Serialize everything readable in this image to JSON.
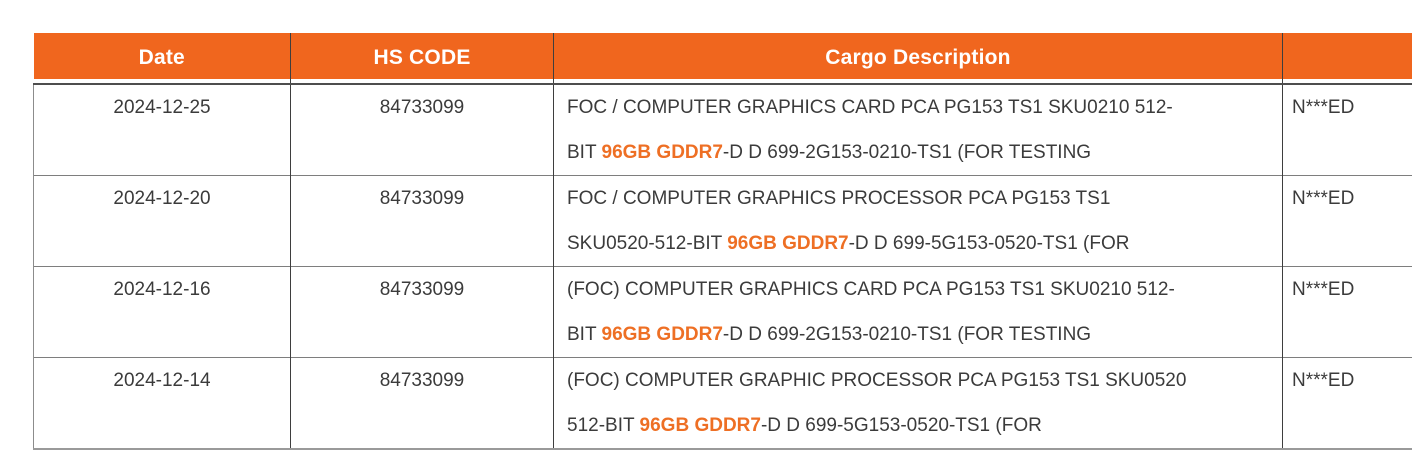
{
  "colors": {
    "header_bg": "#F0661E",
    "header_text": "#FFFFFF",
    "highlight_text": "#EE6F24",
    "body_text": "#3B3B3B"
  },
  "table": {
    "columns": [
      {
        "key": "date",
        "label": "Date"
      },
      {
        "key": "hs_code",
        "label": "HS CODE"
      },
      {
        "key": "description",
        "label": "Cargo Description"
      },
      {
        "key": "consignee",
        "label": ""
      }
    ],
    "rows": [
      {
        "date": "2024-12-25",
        "hs_code": "84733099",
        "description_lines": [
          [
            {
              "text": "FOC / COMPUTER GRAPHICS CARD PCA PG153 TS1 SKU0210 512-",
              "hl": false
            }
          ],
          [
            {
              "text": "BIT ",
              "hl": false
            },
            {
              "text": "96GB GDDR7",
              "hl": true
            },
            {
              "text": "-D D 699-2G153-0210-TS1 (FOR TESTING",
              "hl": false
            }
          ]
        ],
        "consignee": "N***ED"
      },
      {
        "date": "2024-12-20",
        "hs_code": "84733099",
        "description_lines": [
          [
            {
              "text": "FOC / COMPUTER GRAPHICS PROCESSOR PCA PG153 TS1",
              "hl": false
            }
          ],
          [
            {
              "text": "SKU0520-512-BIT ",
              "hl": false
            },
            {
              "text": "96GB GDDR7",
              "hl": true
            },
            {
              "text": "-D D 699-5G153-0520-TS1 (FOR",
              "hl": false
            }
          ]
        ],
        "consignee": "N***ED"
      },
      {
        "date": "2024-12-16",
        "hs_code": "84733099",
        "description_lines": [
          [
            {
              "text": "(FOC) COMPUTER GRAPHICS CARD PCA PG153 TS1 SKU0210 512-",
              "hl": false
            }
          ],
          [
            {
              "text": "BIT ",
              "hl": false
            },
            {
              "text": "96GB GDDR7",
              "hl": true
            },
            {
              "text": "-D D 699-2G153-0210-TS1 (FOR TESTING",
              "hl": false
            }
          ]
        ],
        "consignee": "N***ED"
      },
      {
        "date": "2024-12-14",
        "hs_code": "84733099",
        "description_lines": [
          [
            {
              "text": "(FOC) COMPUTER GRAPHIC PROCESSOR PCA PG153 TS1 SKU0520",
              "hl": false
            }
          ],
          [
            {
              "text": "512-BIT ",
              "hl": false
            },
            {
              "text": "96GB GDDR7",
              "hl": true
            },
            {
              "text": "-D D 699-5G153-0520-TS1 (FOR",
              "hl": false
            }
          ]
        ],
        "consignee": "N***ED"
      }
    ]
  },
  "chart_data": {
    "type": "table",
    "title": "",
    "columns": [
      "Date",
      "HS CODE",
      "Cargo Description",
      ""
    ],
    "rows": [
      [
        "2024-12-25",
        "84733099",
        "FOC / COMPUTER GRAPHICS CARD PCA PG153 TS1 SKU0210 512-BIT 96GB GDDR7-D D 699-2G153-0210-TS1 (FOR TESTING",
        "N***ED"
      ],
      [
        "2024-12-20",
        "84733099",
        "FOC / COMPUTER GRAPHICS PROCESSOR PCA PG153 TS1 SKU0520-512-BIT 96GB GDDR7-D D 699-5G153-0520-TS1 (FOR",
        "N***ED"
      ],
      [
        "2024-12-16",
        "84733099",
        "(FOC) COMPUTER GRAPHICS CARD PCA PG153 TS1 SKU0210 512-BIT 96GB GDDR7-D D 699-2G153-0210-TS1 (FOR TESTING",
        "N***ED"
      ],
      [
        "2024-12-14",
        "84733099",
        "(FOC) COMPUTER GRAPHIC PROCESSOR PCA PG153 TS1 SKU0520 512-BIT 96GB GDDR7-D D 699-5G153-0520-TS1 (FOR",
        "N***ED"
      ]
    ],
    "highlighted_phrase": "96GB GDDR7",
    "layout": {
      "header_background": "#F0661E",
      "header_text_color": "#FFFFFF",
      "grid": "on"
    }
  }
}
